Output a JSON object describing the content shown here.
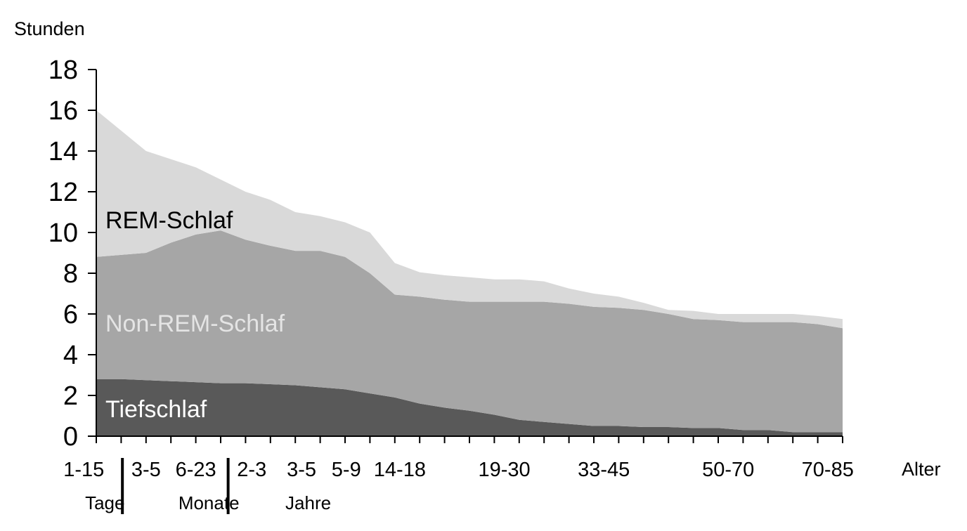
{
  "chart_data": {
    "type": "area",
    "stacked": true,
    "ylabel": "Stunden",
    "xlabel": "Alter",
    "ylim": [
      0,
      18
    ],
    "yticks": [
      0,
      2,
      4,
      6,
      8,
      10,
      12,
      14,
      16,
      18
    ],
    "grid": false,
    "x": [
      0,
      1,
      2,
      3,
      4,
      5,
      6,
      7,
      8,
      9,
      10,
      11,
      12,
      13,
      14,
      15,
      16,
      17,
      18,
      19,
      20,
      21,
      22,
      23,
      24,
      25,
      26,
      27,
      28,
      29,
      30
    ],
    "series": [
      {
        "name": "Tiefschlaf",
        "color": "#595959",
        "label_color": "#ffffff",
        "values": [
          2.8,
          2.8,
          2.75,
          2.7,
          2.65,
          2.6,
          2.6,
          2.55,
          2.5,
          2.4,
          2.3,
          2.1,
          1.9,
          1.6,
          1.4,
          1.25,
          1.05,
          0.8,
          0.7,
          0.6,
          0.5,
          0.5,
          0.45,
          0.45,
          0.4,
          0.4,
          0.3,
          0.3,
          0.2,
          0.2,
          0.2
        ]
      },
      {
        "name": "Non-REM-Schlaf",
        "color": "#a6a6a6",
        "label_color": "#e4e4e4",
        "values": [
          6.0,
          6.1,
          6.25,
          6.8,
          7.25,
          7.5,
          7.05,
          6.8,
          6.6,
          6.7,
          6.5,
          5.9,
          5.05,
          5.25,
          5.3,
          5.35,
          5.55,
          5.8,
          5.9,
          5.9,
          5.85,
          5.8,
          5.75,
          5.55,
          5.35,
          5.3,
          5.3,
          5.3,
          5.4,
          5.3,
          5.1
        ]
      },
      {
        "name": "REM-Schlaf",
        "color": "#d9d9d9",
        "label_color": "#000000",
        "values": [
          7.2,
          6.1,
          5.0,
          4.1,
          3.3,
          2.5,
          2.35,
          2.25,
          1.9,
          1.7,
          1.7,
          2.0,
          1.55,
          1.2,
          1.2,
          1.2,
          1.1,
          1.1,
          1.0,
          0.75,
          0.65,
          0.55,
          0.35,
          0.2,
          0.4,
          0.3,
          0.4,
          0.4,
          0.4,
          0.4,
          0.45
        ]
      }
    ],
    "x_labels": [
      {
        "x": -0.5,
        "text": "1-15"
      },
      {
        "x": 2.0,
        "text": "3-5"
      },
      {
        "x": 4.0,
        "text": "6-23"
      },
      {
        "x": 6.25,
        "text": "2-3"
      },
      {
        "x": 8.25,
        "text": "3-5"
      },
      {
        "x": 10.05,
        "text": "5-9"
      },
      {
        "x": 12.2,
        "text": "14-18"
      },
      {
        "x": 16.4,
        "text": "19-30"
      },
      {
        "x": 20.4,
        "text": "33-45"
      },
      {
        "x": 25.4,
        "text": "50-70"
      },
      {
        "x": 29.4,
        "text": "70-85"
      }
    ],
    "group_labels": [
      {
        "x": -0.45,
        "text": "Tage"
      },
      {
        "x": 3.3,
        "text": "Monate"
      },
      {
        "x": 7.6,
        "text": "Jahre"
      }
    ],
    "group_separators": [
      1.05,
      5.3
    ]
  }
}
